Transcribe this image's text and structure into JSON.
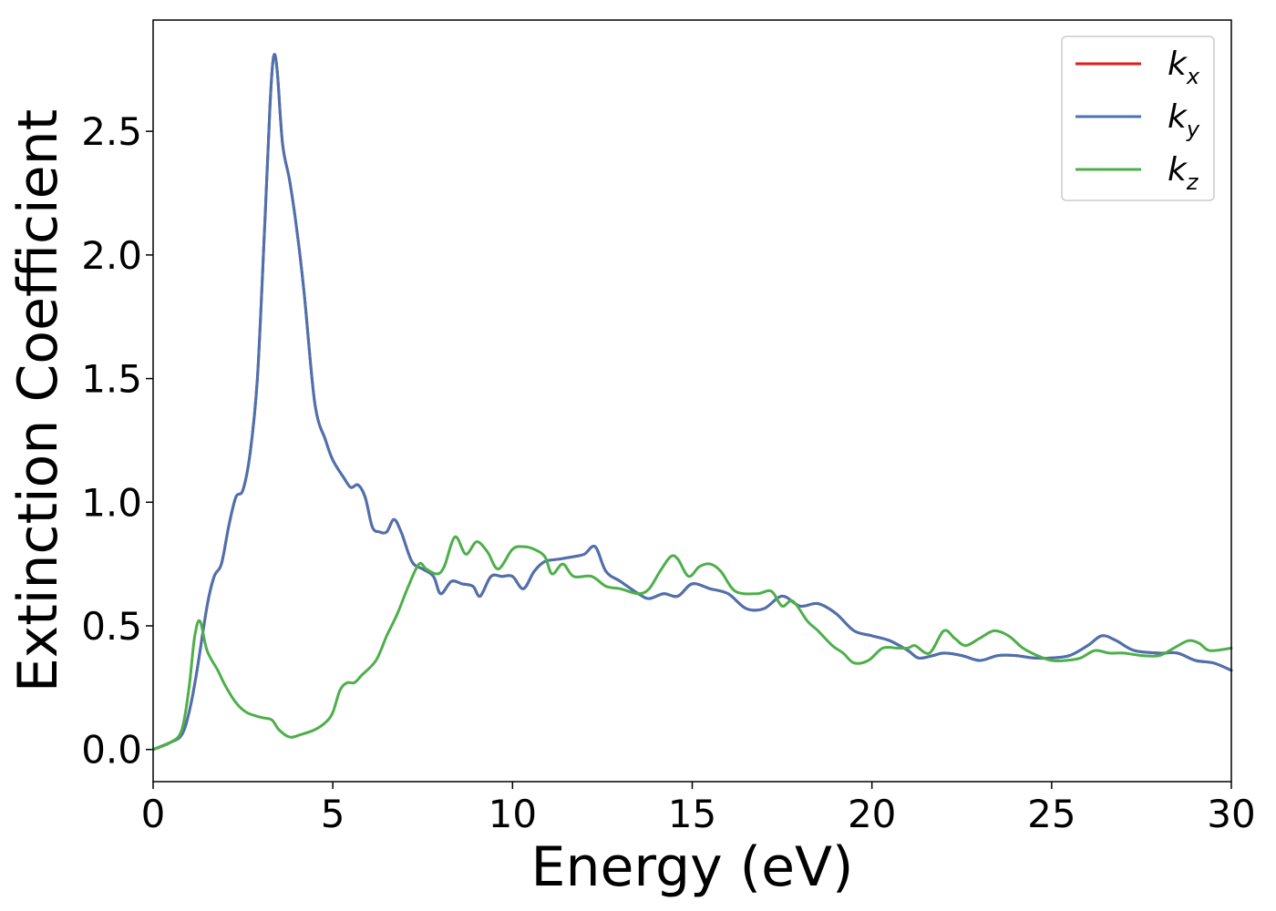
{
  "chart_data": {
    "type": "line",
    "xlabel": "Energy (eV)",
    "ylabel": "Extinction Coefficient",
    "xlim": [
      0,
      30
    ],
    "ylim": [
      -0.13,
      2.95
    ],
    "xticks": [
      "0",
      "5",
      "10",
      "15",
      "20",
      "25",
      "30"
    ],
    "yticks": [
      "0.0",
      "0.5",
      "1.0",
      "1.5",
      "2.0",
      "2.5"
    ],
    "grid": false,
    "legend_position": "top-right",
    "series": [
      {
        "name": "k_x",
        "legend_base": "k",
        "legend_sub": "x",
        "color": "#e41a1c",
        "points": [
          [
            0,
            0.0
          ],
          [
            0.5,
            0.03
          ],
          [
            0.8,
            0.06
          ],
          [
            1.0,
            0.15
          ],
          [
            1.2,
            0.3
          ],
          [
            1.5,
            0.58
          ],
          [
            1.7,
            0.7
          ],
          [
            1.9,
            0.75
          ],
          [
            2.1,
            0.9
          ],
          [
            2.3,
            1.02
          ],
          [
            2.5,
            1.05
          ],
          [
            2.7,
            1.2
          ],
          [
            2.9,
            1.5
          ],
          [
            3.1,
            2.1
          ],
          [
            3.25,
            2.6
          ],
          [
            3.35,
            2.8
          ],
          [
            3.45,
            2.75
          ],
          [
            3.6,
            2.45
          ],
          [
            3.8,
            2.3
          ],
          [
            4.0,
            2.1
          ],
          [
            4.2,
            1.85
          ],
          [
            4.5,
            1.4
          ],
          [
            4.8,
            1.25
          ],
          [
            5.0,
            1.17
          ],
          [
            5.3,
            1.1
          ],
          [
            5.5,
            1.06
          ],
          [
            5.7,
            1.07
          ],
          [
            5.9,
            1.02
          ],
          [
            6.1,
            0.9
          ],
          [
            6.3,
            0.88
          ],
          [
            6.5,
            0.88
          ],
          [
            6.7,
            0.93
          ],
          [
            6.9,
            0.88
          ],
          [
            7.2,
            0.76
          ],
          [
            7.5,
            0.73
          ],
          [
            7.8,
            0.7
          ],
          [
            8.0,
            0.63
          ],
          [
            8.3,
            0.68
          ],
          [
            8.6,
            0.67
          ],
          [
            8.9,
            0.66
          ],
          [
            9.1,
            0.62
          ],
          [
            9.4,
            0.7
          ],
          [
            9.7,
            0.7
          ],
          [
            10.0,
            0.7
          ],
          [
            10.3,
            0.65
          ],
          [
            10.6,
            0.72
          ],
          [
            10.9,
            0.76
          ],
          [
            11.3,
            0.77
          ],
          [
            11.7,
            0.78
          ],
          [
            12.0,
            0.79
          ],
          [
            12.3,
            0.82
          ],
          [
            12.6,
            0.72
          ],
          [
            13.0,
            0.68
          ],
          [
            13.5,
            0.63
          ],
          [
            13.8,
            0.61
          ],
          [
            14.2,
            0.63
          ],
          [
            14.6,
            0.62
          ],
          [
            15.0,
            0.67
          ],
          [
            15.5,
            0.65
          ],
          [
            16.0,
            0.63
          ],
          [
            16.5,
            0.57
          ],
          [
            17.0,
            0.57
          ],
          [
            17.5,
            0.62
          ],
          [
            18.0,
            0.58
          ],
          [
            18.5,
            0.59
          ],
          [
            19.0,
            0.55
          ],
          [
            19.5,
            0.48
          ],
          [
            20.0,
            0.46
          ],
          [
            20.5,
            0.44
          ],
          [
            21.0,
            0.4
          ],
          [
            21.3,
            0.37
          ],
          [
            21.7,
            0.38
          ],
          [
            22.0,
            0.39
          ],
          [
            22.5,
            0.38
          ],
          [
            23.0,
            0.36
          ],
          [
            23.5,
            0.38
          ],
          [
            24.0,
            0.38
          ],
          [
            24.5,
            0.37
          ],
          [
            25.0,
            0.37
          ],
          [
            25.5,
            0.38
          ],
          [
            26.0,
            0.42
          ],
          [
            26.4,
            0.46
          ],
          [
            26.8,
            0.44
          ],
          [
            27.3,
            0.4
          ],
          [
            28.0,
            0.39
          ],
          [
            28.5,
            0.39
          ],
          [
            29.0,
            0.36
          ],
          [
            29.5,
            0.35
          ],
          [
            30.0,
            0.32
          ]
        ]
      },
      {
        "name": "k_y",
        "legend_base": "k",
        "legend_sub": "y",
        "color": "#4a72b0",
        "points": [
          [
            0,
            0.0
          ],
          [
            0.5,
            0.03
          ],
          [
            0.8,
            0.06
          ],
          [
            1.0,
            0.15
          ],
          [
            1.2,
            0.3
          ],
          [
            1.5,
            0.58
          ],
          [
            1.7,
            0.7
          ],
          [
            1.9,
            0.75
          ],
          [
            2.1,
            0.9
          ],
          [
            2.3,
            1.02
          ],
          [
            2.5,
            1.05
          ],
          [
            2.7,
            1.2
          ],
          [
            2.9,
            1.5
          ],
          [
            3.1,
            2.1
          ],
          [
            3.25,
            2.6
          ],
          [
            3.35,
            2.8
          ],
          [
            3.45,
            2.75
          ],
          [
            3.6,
            2.45
          ],
          [
            3.8,
            2.3
          ],
          [
            4.0,
            2.1
          ],
          [
            4.2,
            1.85
          ],
          [
            4.5,
            1.4
          ],
          [
            4.8,
            1.25
          ],
          [
            5.0,
            1.17
          ],
          [
            5.3,
            1.1
          ],
          [
            5.5,
            1.06
          ],
          [
            5.7,
            1.07
          ],
          [
            5.9,
            1.02
          ],
          [
            6.1,
            0.9
          ],
          [
            6.3,
            0.88
          ],
          [
            6.5,
            0.88
          ],
          [
            6.7,
            0.93
          ],
          [
            6.9,
            0.88
          ],
          [
            7.2,
            0.76
          ],
          [
            7.5,
            0.73
          ],
          [
            7.8,
            0.7
          ],
          [
            8.0,
            0.63
          ],
          [
            8.3,
            0.68
          ],
          [
            8.6,
            0.67
          ],
          [
            8.9,
            0.66
          ],
          [
            9.1,
            0.62
          ],
          [
            9.4,
            0.7
          ],
          [
            9.7,
            0.7
          ],
          [
            10.0,
            0.7
          ],
          [
            10.3,
            0.65
          ],
          [
            10.6,
            0.72
          ],
          [
            10.9,
            0.76
          ],
          [
            11.3,
            0.77
          ],
          [
            11.7,
            0.78
          ],
          [
            12.0,
            0.79
          ],
          [
            12.3,
            0.82
          ],
          [
            12.6,
            0.72
          ],
          [
            13.0,
            0.68
          ],
          [
            13.5,
            0.63
          ],
          [
            13.8,
            0.61
          ],
          [
            14.2,
            0.63
          ],
          [
            14.6,
            0.62
          ],
          [
            15.0,
            0.67
          ],
          [
            15.5,
            0.65
          ],
          [
            16.0,
            0.63
          ],
          [
            16.5,
            0.57
          ],
          [
            17.0,
            0.57
          ],
          [
            17.5,
            0.62
          ],
          [
            18.0,
            0.58
          ],
          [
            18.5,
            0.59
          ],
          [
            19.0,
            0.55
          ],
          [
            19.5,
            0.48
          ],
          [
            20.0,
            0.46
          ],
          [
            20.5,
            0.44
          ],
          [
            21.0,
            0.4
          ],
          [
            21.3,
            0.37
          ],
          [
            21.7,
            0.38
          ],
          [
            22.0,
            0.39
          ],
          [
            22.5,
            0.38
          ],
          [
            23.0,
            0.36
          ],
          [
            23.5,
            0.38
          ],
          [
            24.0,
            0.38
          ],
          [
            24.5,
            0.37
          ],
          [
            25.0,
            0.37
          ],
          [
            25.5,
            0.38
          ],
          [
            26.0,
            0.42
          ],
          [
            26.4,
            0.46
          ],
          [
            26.8,
            0.44
          ],
          [
            27.3,
            0.4
          ],
          [
            28.0,
            0.39
          ],
          [
            28.5,
            0.39
          ],
          [
            29.0,
            0.36
          ],
          [
            29.5,
            0.35
          ],
          [
            30.0,
            0.32
          ]
        ]
      },
      {
        "name": "k_z",
        "legend_base": "k",
        "legend_sub": "z",
        "color": "#4daf4a",
        "points": [
          [
            0,
            0.0
          ],
          [
            0.5,
            0.03
          ],
          [
            0.8,
            0.08
          ],
          [
            1.0,
            0.25
          ],
          [
            1.15,
            0.45
          ],
          [
            1.3,
            0.52
          ],
          [
            1.5,
            0.4
          ],
          [
            1.8,
            0.32
          ],
          [
            2.0,
            0.26
          ],
          [
            2.3,
            0.19
          ],
          [
            2.6,
            0.15
          ],
          [
            3.0,
            0.13
          ],
          [
            3.3,
            0.12
          ],
          [
            3.5,
            0.08
          ],
          [
            3.8,
            0.05
          ],
          [
            4.1,
            0.06
          ],
          [
            4.5,
            0.08
          ],
          [
            4.8,
            0.11
          ],
          [
            5.0,
            0.15
          ],
          [
            5.2,
            0.24
          ],
          [
            5.4,
            0.27
          ],
          [
            5.6,
            0.27
          ],
          [
            5.8,
            0.3
          ],
          [
            6.2,
            0.36
          ],
          [
            6.5,
            0.46
          ],
          [
            6.8,
            0.55
          ],
          [
            7.1,
            0.66
          ],
          [
            7.4,
            0.75
          ],
          [
            7.6,
            0.73
          ],
          [
            7.9,
            0.71
          ],
          [
            8.1,
            0.74
          ],
          [
            8.4,
            0.86
          ],
          [
            8.7,
            0.79
          ],
          [
            9.0,
            0.84
          ],
          [
            9.3,
            0.8
          ],
          [
            9.6,
            0.73
          ],
          [
            10.0,
            0.81
          ],
          [
            10.3,
            0.82
          ],
          [
            10.6,
            0.81
          ],
          [
            10.9,
            0.78
          ],
          [
            11.1,
            0.71
          ],
          [
            11.4,
            0.75
          ],
          [
            11.7,
            0.7
          ],
          [
            12.2,
            0.7
          ],
          [
            12.6,
            0.66
          ],
          [
            13.0,
            0.65
          ],
          [
            13.5,
            0.63
          ],
          [
            13.8,
            0.65
          ],
          [
            14.1,
            0.72
          ],
          [
            14.4,
            0.78
          ],
          [
            14.6,
            0.77
          ],
          [
            14.9,
            0.7
          ],
          [
            15.2,
            0.74
          ],
          [
            15.5,
            0.75
          ],
          [
            15.8,
            0.72
          ],
          [
            16.2,
            0.64
          ],
          [
            16.8,
            0.63
          ],
          [
            17.2,
            0.64
          ],
          [
            17.5,
            0.58
          ],
          [
            17.8,
            0.6
          ],
          [
            18.2,
            0.52
          ],
          [
            18.5,
            0.48
          ],
          [
            18.9,
            0.42
          ],
          [
            19.2,
            0.39
          ],
          [
            19.5,
            0.35
          ],
          [
            19.9,
            0.36
          ],
          [
            20.3,
            0.41
          ],
          [
            20.7,
            0.41
          ],
          [
            21.0,
            0.41
          ],
          [
            21.2,
            0.42
          ],
          [
            21.6,
            0.39
          ],
          [
            22.0,
            0.48
          ],
          [
            22.3,
            0.45
          ],
          [
            22.6,
            0.42
          ],
          [
            23.0,
            0.45
          ],
          [
            23.4,
            0.48
          ],
          [
            23.8,
            0.46
          ],
          [
            24.2,
            0.41
          ],
          [
            24.6,
            0.38
          ],
          [
            25.0,
            0.36
          ],
          [
            25.4,
            0.36
          ],
          [
            25.8,
            0.37
          ],
          [
            26.2,
            0.4
          ],
          [
            26.6,
            0.39
          ],
          [
            27.0,
            0.39
          ],
          [
            27.5,
            0.38
          ],
          [
            28.0,
            0.38
          ],
          [
            28.4,
            0.41
          ],
          [
            28.8,
            0.44
          ],
          [
            29.1,
            0.43
          ],
          [
            29.4,
            0.4
          ],
          [
            30.0,
            0.41
          ]
        ]
      }
    ]
  }
}
